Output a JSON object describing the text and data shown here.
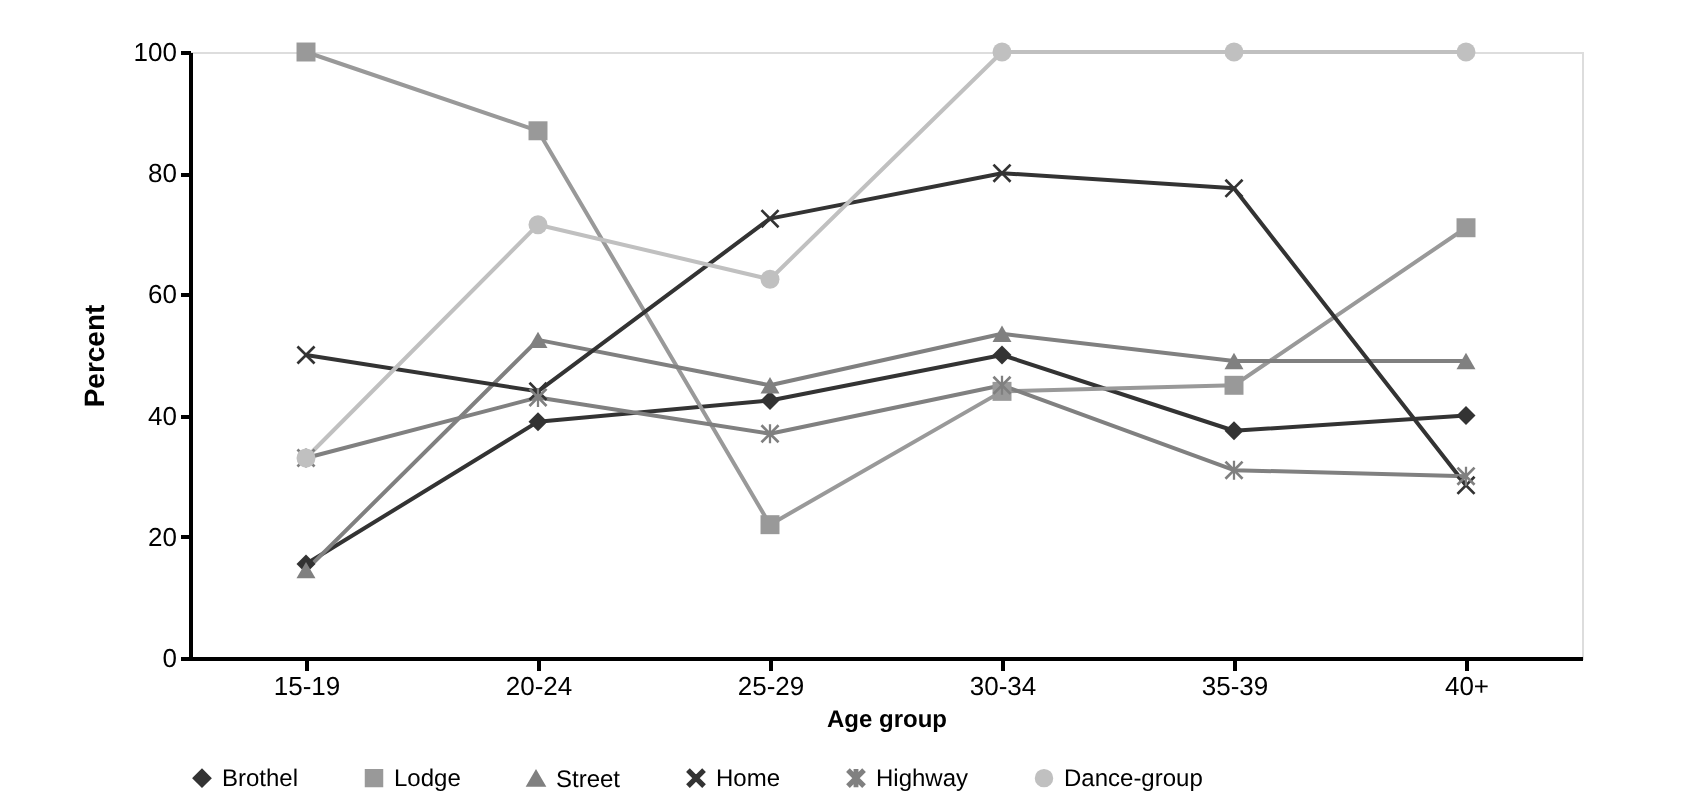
{
  "chart_data": {
    "type": "line",
    "xlabel": "Age group",
    "ylabel": "Percent",
    "categories": [
      "15-19",
      "20-24",
      "25-29",
      "30-34",
      "35-39",
      "40+"
    ],
    "ylim": [
      0,
      100
    ],
    "yticks": [
      0,
      20,
      40,
      60,
      80,
      100
    ],
    "grid": false,
    "legend": "bottom",
    "series": [
      {
        "name": "Brothel",
        "color": "#333333",
        "marker": "diamond",
        "values": [
          15.5,
          39,
          42.5,
          50,
          37.5,
          40
        ]
      },
      {
        "name": "Lodge",
        "color": "#999999",
        "marker": "square",
        "values": [
          100,
          87,
          22,
          44,
          45,
          71
        ]
      },
      {
        "name": "Street",
        "color": "#808080",
        "marker": "triangle",
        "values": [
          14.5,
          52.5,
          45,
          53.5,
          49,
          49
        ]
      },
      {
        "name": "Home",
        "color": "#333333",
        "marker": "cross",
        "values": [
          50,
          44,
          72.5,
          80,
          77.5,
          28.5
        ]
      },
      {
        "name": "Highway",
        "color": "#808080",
        "marker": "star",
        "values": [
          33,
          43,
          37,
          45,
          31,
          30
        ]
      },
      {
        "name": "Dance-group",
        "color": "#c0c0c0",
        "marker": "circle",
        "values": [
          33,
          71.5,
          62.5,
          100,
          100,
          100
        ]
      }
    ]
  }
}
